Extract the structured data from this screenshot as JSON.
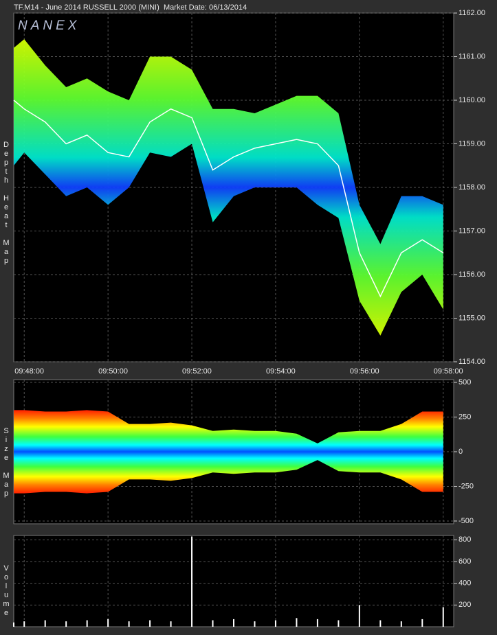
{
  "header": {
    "symbol": "TF.M14 - June 2014 RUSSELL 2000 (MINI)",
    "market_date": "Market Date: 06/13/2014"
  },
  "logo": "NANEX",
  "chart_data": [
    {
      "type": "heatmap",
      "ylabel": "Depth Heat Map",
      "x": [
        "09:47:45",
        "09:48:00",
        "09:48:30",
        "09:49:00",
        "09:49:30",
        "09:50:00",
        "09:50:30",
        "09:51:00",
        "09:51:30",
        "09:52:00",
        "09:52:30",
        "09:53:00",
        "09:53:30",
        "09:54:00",
        "09:54:30",
        "09:55:00",
        "09:55:30",
        "09:56:00",
        "09:56:30",
        "09:57:00",
        "09:57:30",
        "09:58:00"
      ],
      "values": [
        1160.0,
        1159.8,
        1159.5,
        1159.0,
        1159.2,
        1158.8,
        1158.7,
        1159.5,
        1159.8,
        1159.6,
        1158.4,
        1158.7,
        1158.9,
        1159.0,
        1159.1,
        1159.0,
        1158.5,
        1156.5,
        1155.5,
        1156.5,
        1156.8,
        1156.5
      ],
      "low": [
        1158.5,
        1158.8,
        1158.3,
        1157.8,
        1158.0,
        1157.6,
        1158.0,
        1158.8,
        1158.7,
        1159.0,
        1157.2,
        1157.8,
        1158.0,
        1158.0,
        1158.0,
        1157.6,
        1157.3,
        1155.4,
        1154.6,
        1155.6,
        1156.0,
        1155.2
      ],
      "high": [
        1161.2,
        1161.4,
        1160.8,
        1160.3,
        1160.5,
        1160.2,
        1160.0,
        1161.0,
        1161.0,
        1160.7,
        1159.8,
        1159.8,
        1159.7,
        1159.9,
        1160.1,
        1160.1,
        1159.7,
        1157.6,
        1156.7,
        1157.8,
        1157.8,
        1157.6
      ],
      "xlim": [
        "09:47:45",
        "09:58:15"
      ],
      "xticks": [
        "09:48:00",
        "09:50:00",
        "09:52:00",
        "09:54:00",
        "09:56:00",
        "09:58:00"
      ],
      "ylim": [
        1154.0,
        1162.0
      ],
      "yticks": [
        {
          "value": 1154,
          "label": "1154.00"
        },
        {
          "value": 1155,
          "label": "1155.00"
        },
        {
          "value": 1156,
          "label": "1156.00"
        },
        {
          "value": 1157,
          "label": "1157.00"
        },
        {
          "value": 1158,
          "label": "1158.00"
        },
        {
          "value": 1159,
          "label": "1159.00"
        },
        {
          "value": 1160,
          "label": "1160.00"
        },
        {
          "value": 1161,
          "label": "1161.00"
        },
        {
          "value": 1162,
          "label": "1162.00"
        }
      ],
      "grid": true
    },
    {
      "type": "sizemap",
      "ylabel": "Size Map",
      "x": [
        "09:47:45",
        "09:48:00",
        "09:48:30",
        "09:49:00",
        "09:49:30",
        "09:50:00",
        "09:50:30",
        "09:51:00",
        "09:51:30",
        "09:52:00",
        "09:52:30",
        "09:53:00",
        "09:53:30",
        "09:54:00",
        "09:54:30",
        "09:55:00",
        "09:55:30",
        "09:56:00",
        "09:56:30",
        "09:57:00",
        "09:57:30",
        "09:58:00"
      ],
      "values": [
        300,
        300,
        290,
        290,
        300,
        290,
        200,
        200,
        210,
        190,
        150,
        160,
        150,
        150,
        130,
        60,
        140,
        150,
        150,
        200,
        290,
        290
      ],
      "ylim": [
        -520,
        520
      ],
      "yticks": [
        -500,
        -250,
        0,
        250,
        500
      ],
      "grid": true
    },
    {
      "type": "volume",
      "ylabel": "Volume",
      "x": [
        "09:47:45",
        "09:48:00",
        "09:48:30",
        "09:49:00",
        "09:49:30",
        "09:50:00",
        "09:50:30",
        "09:51:00",
        "09:51:30",
        "09:52:00",
        "09:52:30",
        "09:53:00",
        "09:53:30",
        "09:54:00",
        "09:54:30",
        "09:55:00",
        "09:55:30",
        "09:56:00",
        "09:56:30",
        "09:57:00",
        "09:57:30",
        "09:58:00"
      ],
      "values": [
        40,
        50,
        60,
        50,
        60,
        70,
        50,
        60,
        50,
        830,
        60,
        70,
        50,
        60,
        80,
        70,
        60,
        200,
        60,
        50,
        70,
        180
      ],
      "ylim": [
        0,
        840
      ],
      "yticks": [
        200,
        400,
        600,
        800
      ],
      "grid": true
    }
  ]
}
